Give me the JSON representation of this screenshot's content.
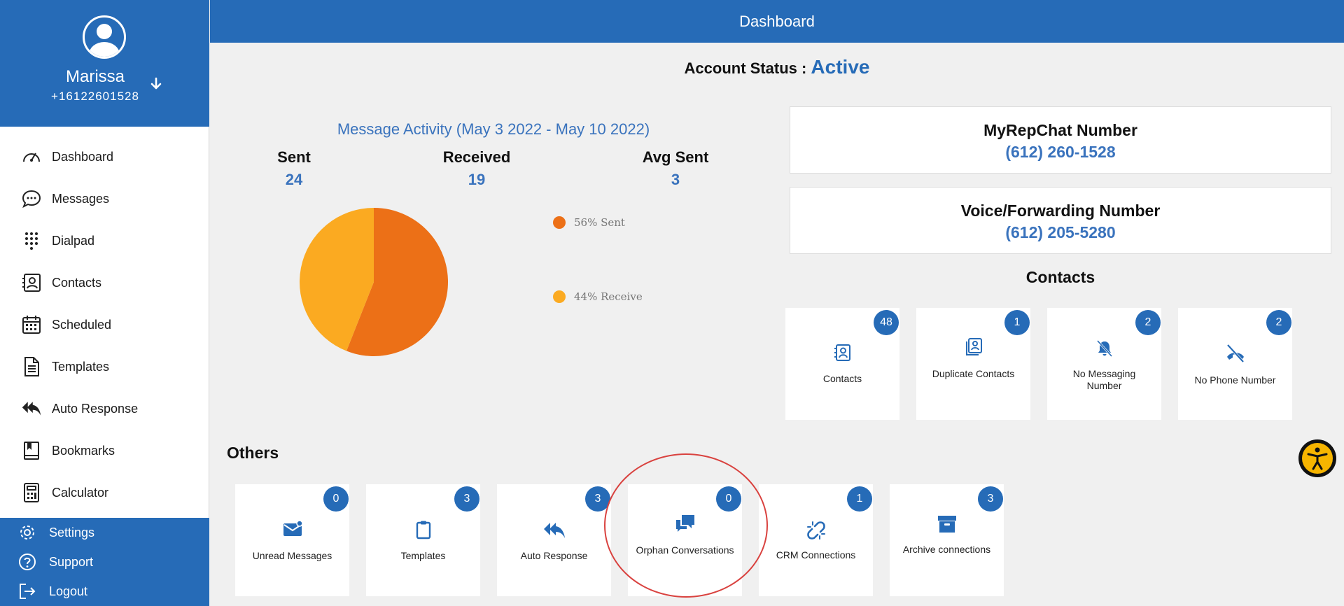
{
  "header": {
    "title": "Dashboard"
  },
  "profile": {
    "name": "Marissa",
    "phone": "+16122601528"
  },
  "nav": {
    "items": [
      {
        "label": "Dashboard"
      },
      {
        "label": "Messages"
      },
      {
        "label": "Dialpad"
      },
      {
        "label": "Contacts"
      },
      {
        "label": "Scheduled"
      },
      {
        "label": "Templates"
      },
      {
        "label": "Auto Response"
      },
      {
        "label": "Bookmarks"
      },
      {
        "label": "Calculator"
      }
    ],
    "bottom": [
      {
        "label": "Settings"
      },
      {
        "label": "Support"
      },
      {
        "label": "Logout"
      }
    ]
  },
  "account_status": {
    "label": "Account Status : ",
    "value": "Active"
  },
  "activity": {
    "title": "Message Activity (May 3 2022 - May 10 2022)",
    "stats": [
      {
        "label": "Sent",
        "value": "24"
      },
      {
        "label": "Received",
        "value": "19"
      },
      {
        "label": "Avg Sent",
        "value": "3"
      }
    ],
    "legend": [
      {
        "label": "56% Sent",
        "color": "#ec7017"
      },
      {
        "label": "44% Receive",
        "color": "#fbaa21"
      }
    ]
  },
  "chart_data": {
    "type": "pie",
    "categories": [
      "Sent",
      "Receive"
    ],
    "values": [
      56,
      44
    ],
    "colors": [
      "#ec7017",
      "#fbaa21"
    ],
    "legend_position": "right"
  },
  "numbers": {
    "myrepchat": {
      "label": "MyRepChat Number",
      "value": "(612) 260-1528"
    },
    "voice": {
      "label": "Voice/Forwarding Number",
      "value": "(612) 205-5280"
    }
  },
  "contacts_section": {
    "title": "Contacts",
    "tiles": [
      {
        "label": "Contacts",
        "count": "48",
        "icon": "contact-card-icon"
      },
      {
        "label": "Duplicate Contacts",
        "count": "1",
        "icon": "duplicate-contacts-icon"
      },
      {
        "label": "No Messaging Number",
        "count": "2",
        "icon": "bell-off-icon"
      },
      {
        "label": "No Phone Number",
        "count": "2",
        "icon": "phone-off-icon"
      }
    ]
  },
  "others_section": {
    "title": "Others",
    "tiles": [
      {
        "label": "Unread Messages",
        "count": "0",
        "icon": "envelope-icon"
      },
      {
        "label": "Templates",
        "count": "3",
        "icon": "clipboard-icon"
      },
      {
        "label": "Auto Response",
        "count": "3",
        "icon": "reply-all-icon"
      },
      {
        "label": "Orphan Conversations",
        "count": "0",
        "icon": "chat-bubbles-icon"
      },
      {
        "label": "CRM Connections",
        "count": "1",
        "icon": "broken-link-icon"
      },
      {
        "label": "Archive connections",
        "count": "3",
        "icon": "archive-box-icon"
      }
    ]
  },
  "colors": {
    "primary": "#266bb7",
    "sent": "#ec7017",
    "received": "#fbaa21",
    "annotation": "#d9423f",
    "accessibility": "#f7b500"
  }
}
